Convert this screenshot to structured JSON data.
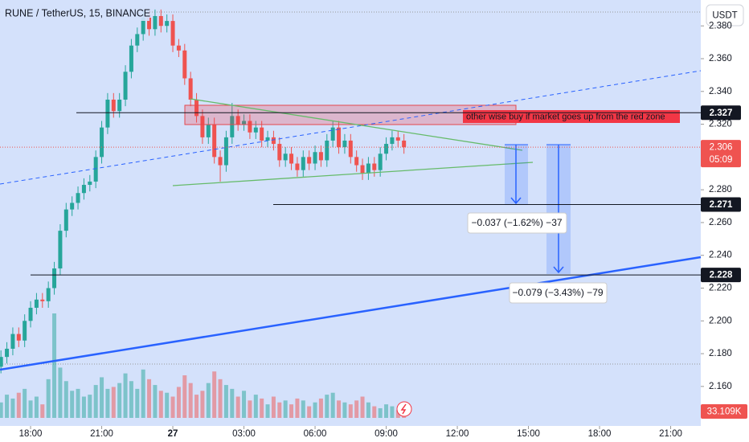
{
  "chart_data": {
    "type": "candlestick",
    "title": "RUNE / TetherUS, 15, BINANCE",
    "currency": "USDT",
    "x": [
      -1.25,
      -1,
      -0.75,
      -0.5,
      -0.25,
      0,
      0.25,
      0.5,
      0.75,
      1,
      1.25,
      1.5,
      1.75,
      2,
      2.25,
      2.5,
      2.75,
      3,
      3.25,
      3.5,
      3.75,
      4,
      4.25,
      4.5,
      4.75,
      5,
      5.25,
      5.5,
      5.75,
      6,
      6.25,
      6.5,
      6.75,
      7,
      7.25,
      7.5,
      7.75,
      8,
      8.25,
      8.5,
      8.75,
      9,
      9.25,
      9.5,
      9.75,
      10,
      10.25,
      10.5,
      10.75,
      11,
      11.25,
      11.5,
      11.75,
      12,
      12.25,
      12.5,
      12.75,
      13,
      13.25,
      13.5,
      13.75,
      14,
      14.25,
      14.5,
      14.75,
      15,
      15.25,
      15.5,
      15.75
    ],
    "open": [
      2.172,
      2.178,
      2.183,
      2.192,
      2.188,
      2.2,
      2.208,
      2.213,
      2.212,
      2.22,
      2.232,
      2.255,
      2.268,
      2.272,
      2.278,
      2.283,
      2.285,
      2.3,
      2.318,
      2.335,
      2.328,
      2.335,
      2.352,
      2.368,
      2.375,
      2.385,
      2.378,
      2.386,
      2.38,
      2.383,
      2.368,
      2.365,
      2.348,
      2.335,
      2.325,
      2.312,
      2.32,
      2.3,
      2.295,
      2.312,
      2.325,
      2.32,
      2.322,
      2.315,
      2.318,
      2.31,
      2.312,
      2.308,
      2.298,
      2.302,
      2.296,
      2.292,
      2.3,
      2.296,
      2.303,
      2.298,
      2.31,
      2.318,
      2.306,
      2.31,
      2.3,
      2.295,
      2.29,
      2.296,
      2.292,
      2.302,
      2.308,
      2.312,
      2.31
    ],
    "high": [
      2.182,
      2.187,
      2.196,
      2.196,
      2.204,
      2.212,
      2.217,
      2.217,
      2.224,
      2.236,
      2.259,
      2.272,
      2.276,
      2.282,
      2.287,
      2.289,
      2.304,
      2.322,
      2.339,
      2.339,
      2.339,
      2.356,
      2.372,
      2.379,
      2.389,
      2.389,
      2.39,
      2.39,
      2.387,
      2.387,
      2.372,
      2.369,
      2.352,
      2.339,
      2.329,
      2.324,
      2.324,
      2.304,
      2.316,
      2.333,
      2.329,
      2.326,
      2.326,
      2.322,
      2.322,
      2.316,
      2.316,
      2.312,
      2.306,
      2.306,
      2.3,
      2.304,
      2.304,
      2.307,
      2.307,
      2.314,
      2.322,
      2.322,
      2.314,
      2.314,
      2.304,
      2.299,
      2.3,
      2.3,
      2.306,
      2.312,
      2.316,
      2.316,
      2.314
    ],
    "low": [
      2.168,
      2.174,
      2.179,
      2.184,
      2.184,
      2.196,
      2.204,
      2.208,
      2.208,
      2.216,
      2.228,
      2.251,
      2.264,
      2.268,
      2.274,
      2.279,
      2.281,
      2.296,
      2.314,
      2.324,
      2.324,
      2.331,
      2.348,
      2.364,
      2.371,
      2.374,
      2.374,
      2.376,
      2.376,
      2.364,
      2.361,
      2.344,
      2.331,
      2.321,
      2.308,
      2.308,
      2.296,
      2.285,
      2.291,
      2.308,
      2.316,
      2.316,
      2.311,
      2.311,
      2.306,
      2.306,
      2.304,
      2.294,
      2.294,
      2.292,
      2.288,
      2.288,
      2.292,
      2.292,
      2.294,
      2.294,
      2.306,
      2.302,
      2.302,
      2.296,
      2.291,
      2.286,
      2.286,
      2.288,
      2.288,
      2.298,
      2.304,
      2.306,
      2.302
    ],
    "close": [
      2.178,
      2.183,
      2.192,
      2.188,
      2.2,
      2.208,
      2.213,
      2.212,
      2.22,
      2.232,
      2.255,
      2.268,
      2.272,
      2.278,
      2.283,
      2.285,
      2.3,
      2.318,
      2.335,
      2.328,
      2.335,
      2.352,
      2.368,
      2.375,
      2.385,
      2.378,
      2.386,
      2.38,
      2.383,
      2.368,
      2.365,
      2.348,
      2.335,
      2.325,
      2.312,
      2.32,
      2.3,
      2.295,
      2.312,
      2.325,
      2.32,
      2.322,
      2.315,
      2.318,
      2.31,
      2.312,
      2.308,
      2.298,
      2.302,
      2.296,
      2.292,
      2.3,
      2.296,
      2.303,
      2.298,
      2.31,
      2.318,
      2.306,
      2.31,
      2.3,
      2.295,
      2.29,
      2.296,
      2.292,
      2.302,
      2.308,
      2.312,
      2.31,
      2.306
    ],
    "volume": [
      80,
      120,
      100,
      130,
      150,
      90,
      110,
      70,
      200,
      540,
      260,
      190,
      140,
      150,
      110,
      120,
      170,
      210,
      150,
      160,
      180,
      230,
      190,
      150,
      250,
      200,
      170,
      140,
      130,
      110,
      160,
      220,
      180,
      120,
      140,
      180,
      240,
      200,
      170,
      150,
      110,
      140,
      90,
      120,
      100,
      70,
      110,
      80,
      90,
      70,
      100,
      90,
      60,
      80,
      100,
      120,
      130,
      90,
      80,
      70,
      90,
      110,
      80,
      60,
      50,
      70,
      60,
      40,
      33.109
    ],
    "volume_last_label": "33.109K",
    "volume_lim": [
      0,
      2160
    ],
    "up_color": "#26a69a",
    "down_color": "#ef5350",
    "xlim": [
      -1.29,
      28.27
    ],
    "xticks": [
      {
        "value": 0,
        "label": "18:00"
      },
      {
        "value": 3,
        "label": "21:00"
      },
      {
        "value": 6,
        "label": "27"
      },
      {
        "value": 9,
        "label": "03:00"
      },
      {
        "value": 12,
        "label": "06:00"
      },
      {
        "value": 15,
        "label": "09:00"
      },
      {
        "value": 18,
        "label": "12:00"
      },
      {
        "value": 21,
        "label": "15:00"
      },
      {
        "value": 24,
        "label": "18:00"
      },
      {
        "value": 27,
        "label": "21:00"
      }
    ],
    "ylim": [
      2.1359,
      2.3958
    ],
    "yticks": [
      {
        "value": 2.38,
        "label": "2.380"
      },
      {
        "value": 2.36,
        "label": "2.360"
      },
      {
        "value": 2.34,
        "label": "2.340"
      },
      {
        "value": 2.32,
        "label": "2.320"
      },
      {
        "value": 2.28,
        "label": "2.280"
      },
      {
        "value": 2.26,
        "label": "2.260"
      },
      {
        "value": 2.24,
        "label": "2.240"
      },
      {
        "value": 2.22,
        "label": "2.220"
      },
      {
        "value": 2.2,
        "label": "2.200"
      },
      {
        "value": 2.18,
        "label": "2.180"
      },
      {
        "value": 2.16,
        "label": "2.160"
      }
    ],
    "levels": [
      2.327,
      2.271,
      2.228
    ],
    "last_price": 2.306,
    "countdown": "05:09",
    "annotations": [
      "other wise buy if market goes up from the red zone",
      "−0.037 (−1.62%) −37",
      "−0.079 (−3.43%) −79"
    ]
  }
}
